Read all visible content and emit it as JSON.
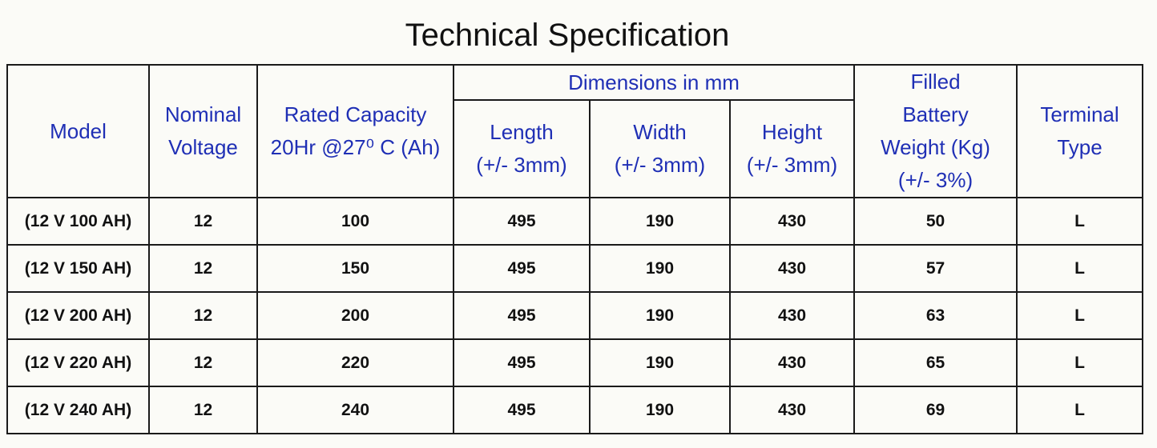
{
  "title": "Technical Specification",
  "table": {
    "header": {
      "model": "Model",
      "voltage": [
        "Nominal",
        "Voltage"
      ],
      "capacity": [
        "Rated Capacity",
        "20Hr @27⁰ C (Ah)"
      ],
      "dimensions": {
        "title": "Dimensions in mm",
        "columns": [
          [
            "Length",
            "(+/- 3mm)"
          ],
          [
            "Width",
            "(+/- 3mm)"
          ],
          [
            "Height",
            "(+/- 3mm)"
          ]
        ]
      },
      "weight": [
        "Filled",
        "Battery",
        "Weight (Kg)",
        "(+/- 3%)"
      ],
      "terminal": [
        "Terminal",
        "Type"
      ]
    },
    "rows": [
      [
        "(12 V 100 AH)",
        12,
        100,
        495,
        190,
        430,
        50,
        "L"
      ],
      [
        "(12 V 150 AH)",
        12,
        150,
        495,
        190,
        430,
        57,
        "L"
      ],
      [
        "(12 V 200 AH)",
        12,
        200,
        495,
        190,
        430,
        63,
        "L"
      ],
      [
        "(12 V 220 AH)",
        12,
        220,
        495,
        190,
        430,
        65,
        "L"
      ],
      [
        "(12 V 240 AH)",
        12,
        240,
        495,
        190,
        430,
        69,
        "L"
      ]
    ]
  }
}
